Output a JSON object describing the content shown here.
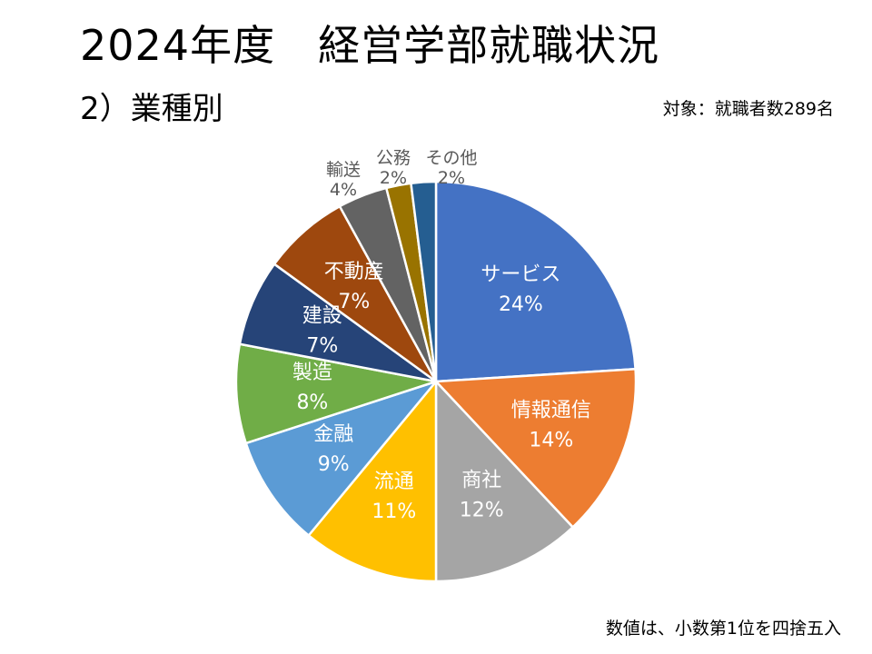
{
  "slide": {
    "title": "2024年度　経営学部就職状況",
    "subtitle": "2）業種別",
    "target_note": "対象：就職者数289名",
    "footnote": "数値は、小数第1位を四捨五入"
  },
  "chart_data": {
    "type": "pie",
    "title": "",
    "start": "top, clockwise",
    "slices": [
      {
        "label": "サービス",
        "value": 24,
        "display": "24%",
        "color": "#4472C4",
        "label_color": "#FFFFFF"
      },
      {
        "label": "情報通信",
        "value": 14,
        "display": "14%",
        "color": "#ED7D31",
        "label_color": "#FFFFFF"
      },
      {
        "label": "商社",
        "value": 12,
        "display": "12%",
        "color": "#A5A5A5",
        "label_color": "#FFFFFF"
      },
      {
        "label": "流通",
        "value": 11,
        "display": "11%",
        "color": "#FFC000",
        "label_color": "#FFFFFF"
      },
      {
        "label": "金融",
        "value": 9,
        "display": "9%",
        "color": "#5B9BD5",
        "label_color": "#FFFFFF"
      },
      {
        "label": "製造",
        "value": 8,
        "display": "8%",
        "color": "#70AD47",
        "label_color": "#FFFFFF"
      },
      {
        "label": "建設",
        "value": 7,
        "display": "7%",
        "color": "#264478",
        "label_color": "#FFFFFF"
      },
      {
        "label": "不動産",
        "value": 7,
        "display": "7%",
        "color": "#9E480E",
        "label_color": "#FFFFFF"
      },
      {
        "label": "輸送",
        "value": 4,
        "display": "4%",
        "color": "#636363",
        "label_color": "#595959"
      },
      {
        "label": "公務",
        "value": 2,
        "display": "2%",
        "color": "#997300",
        "label_color": "#595959"
      },
      {
        "label": "その他",
        "value": 2,
        "display": "2%",
        "color": "#255E91",
        "label_color": "#595959"
      }
    ]
  }
}
